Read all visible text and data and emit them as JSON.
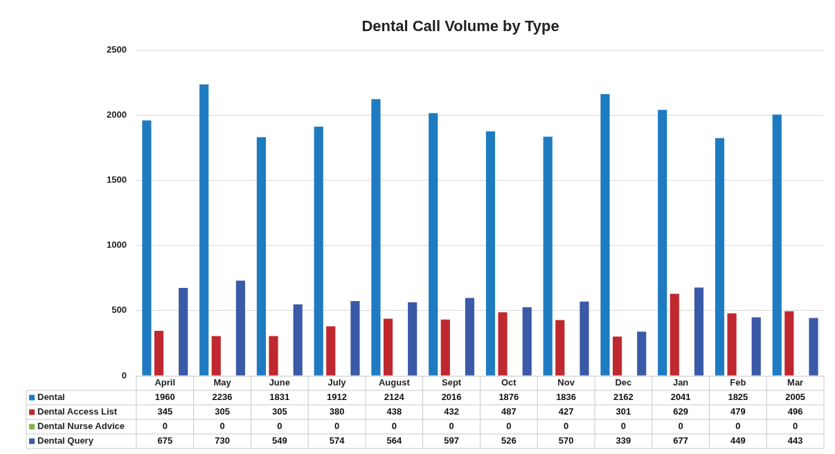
{
  "chart_data": {
    "type": "bar",
    "title": "Dental Call Volume by Type",
    "categories": [
      "April",
      "May",
      "June",
      "July",
      "August",
      "Sept",
      "Oct",
      "Nov",
      "Dec",
      "Jan",
      "Feb",
      "Mar"
    ],
    "series": [
      {
        "name": "Dental",
        "color": "#1f7bc1",
        "values": [
          1960,
          2236,
          1831,
          1912,
          2124,
          2016,
          1876,
          1836,
          2162,
          2041,
          1825,
          2005
        ]
      },
      {
        "name": "Dental Access List",
        "color": "#c0282f",
        "values": [
          345,
          305,
          305,
          380,
          438,
          432,
          487,
          427,
          301,
          629,
          479,
          496
        ]
      },
      {
        "name": "Dental Nurse Advice",
        "color": "#7ab648",
        "values": [
          0,
          0,
          0,
          0,
          0,
          0,
          0,
          0,
          0,
          0,
          0,
          0
        ]
      },
      {
        "name": "Dental Query",
        "color": "#3a5aa8",
        "values": [
          675,
          730,
          549,
          574,
          564,
          597,
          526,
          570,
          339,
          677,
          449,
          443
        ]
      }
    ],
    "ylim": [
      0,
      2500
    ],
    "yticks": [
      0,
      500,
      1000,
      1500,
      2000,
      2500
    ],
    "grid": "y",
    "legend": "bottom",
    "data_labels": true
  }
}
